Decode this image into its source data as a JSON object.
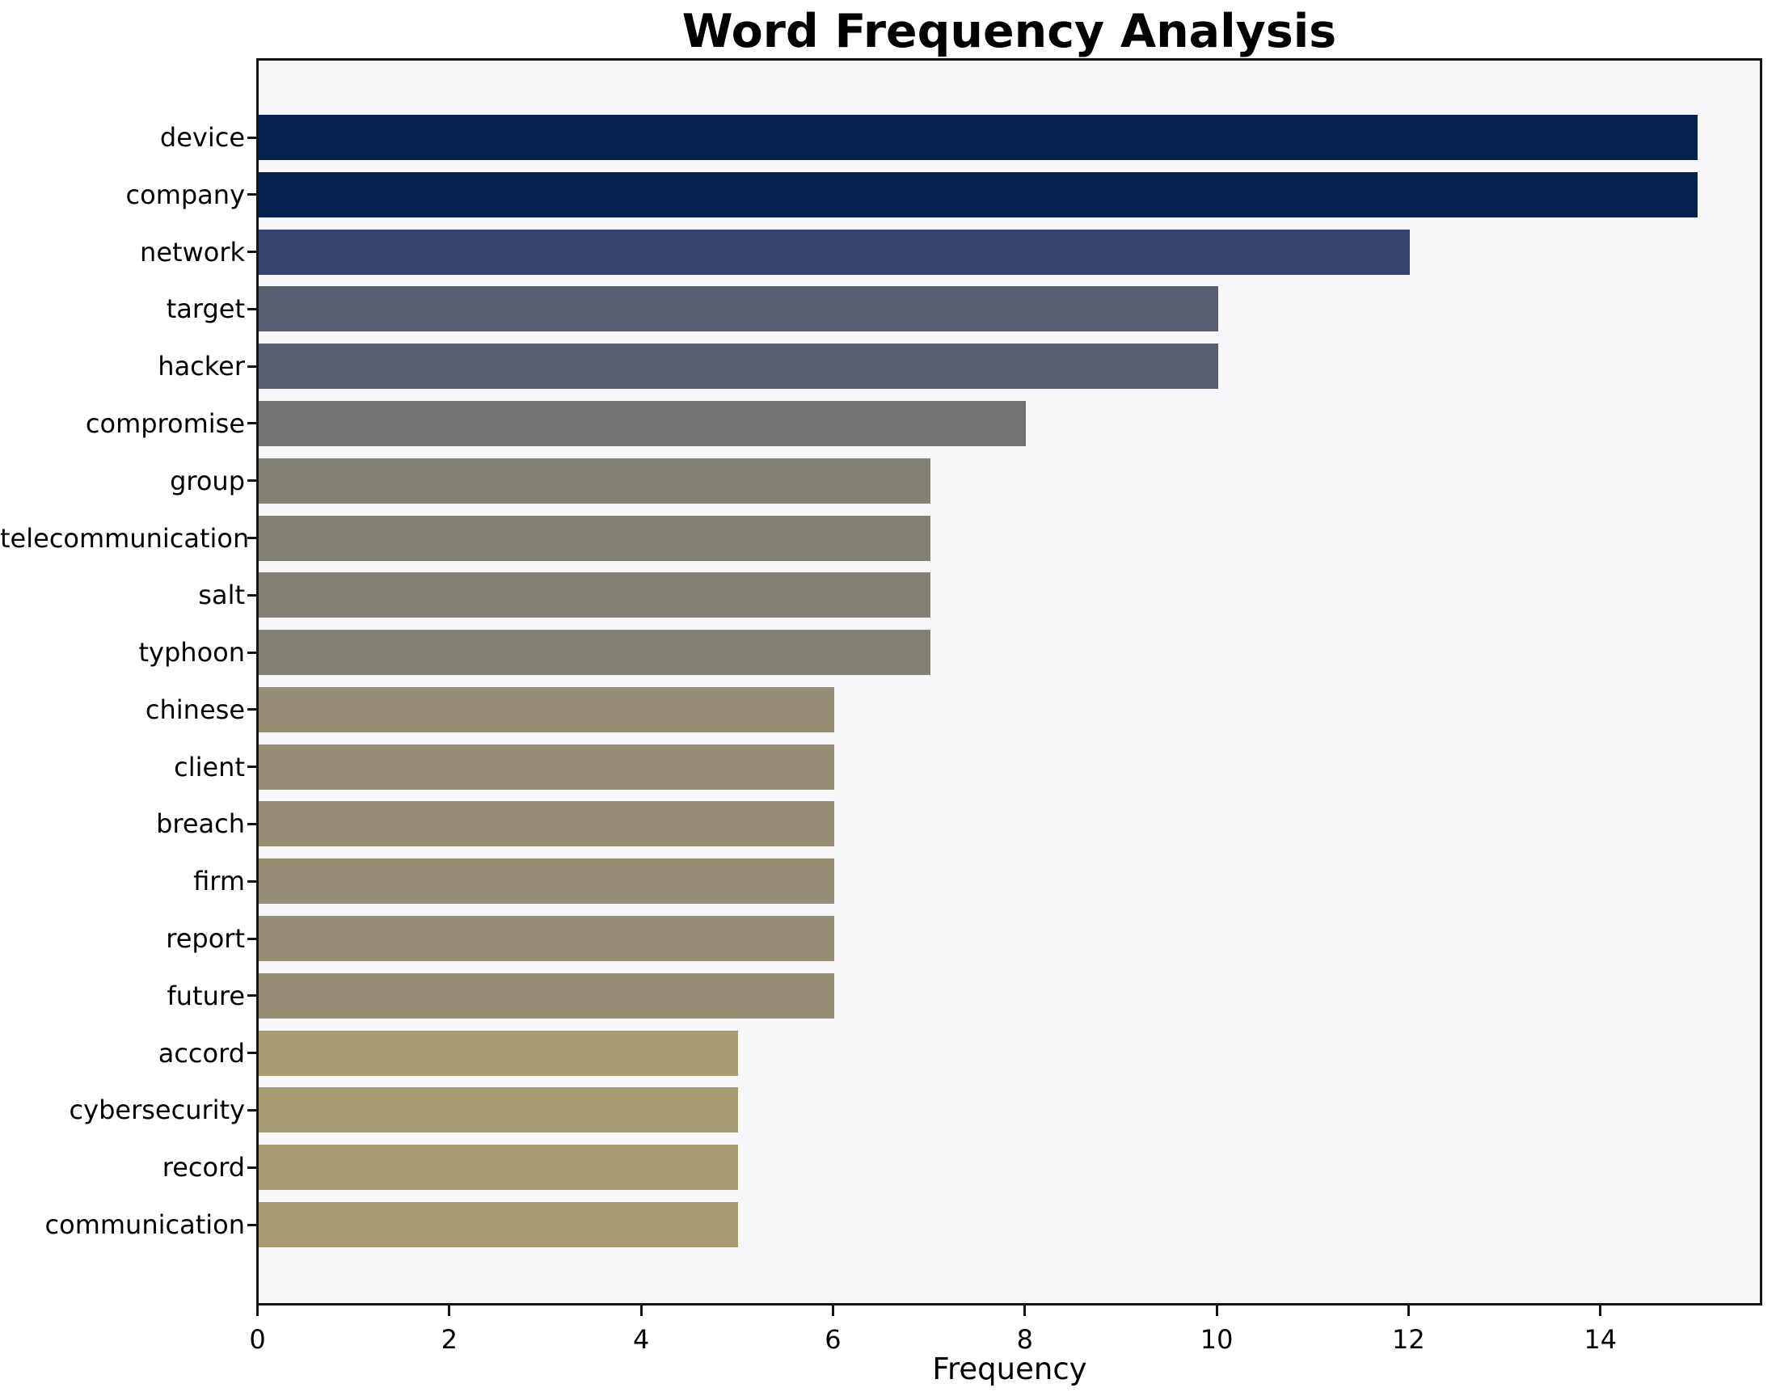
{
  "chart_data": {
    "type": "bar",
    "orientation": "horizontal",
    "title": "Word Frequency Analysis",
    "xlabel": "Frequency",
    "ylabel": "",
    "categories": [
      "device",
      "company",
      "network",
      "target",
      "hacker",
      "compromise",
      "group",
      "telecommunication",
      "salt",
      "typhoon",
      "chinese",
      "client",
      "breach",
      "firm",
      "report",
      "future",
      "accord",
      "cybersecurity",
      "record",
      "communication"
    ],
    "values": [
      15,
      15,
      12,
      10,
      10,
      8,
      7,
      7,
      7,
      7,
      6,
      6,
      6,
      6,
      6,
      6,
      5,
      5,
      5,
      5
    ],
    "bar_colors": [
      "#03234e",
      "#03234e",
      "#36456e",
      "#575d6e",
      "#575d6e",
      "#737373",
      "#838076",
      "#838076",
      "#838076",
      "#838076",
      "#958e74",
      "#958e74",
      "#958e74",
      "#958e74",
      "#958e74",
      "#958e74",
      "#a69c72",
      "#a69c72",
      "#a69c72",
      "#a69c72"
    ],
    "x_ticks": [
      0,
      2,
      4,
      6,
      8,
      10,
      12,
      14
    ],
    "xlim": [
      0,
      15.69
    ],
    "grid": false,
    "legend": false,
    "plot_background": "#f7f6f8",
    "figure_background": "#ffffff",
    "spine_color": "#151515"
  }
}
